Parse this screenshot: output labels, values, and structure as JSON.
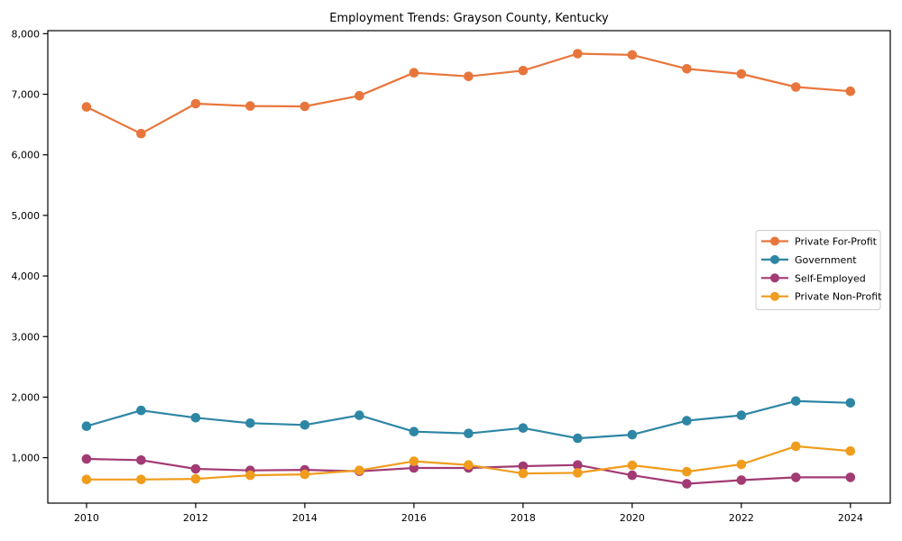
{
  "title": "Employment Trends: Grayson County, Kentucky",
  "chart_data": {
    "type": "line",
    "title": "Employment Trends: Grayson County, Kentucky",
    "xlabel": "",
    "ylabel": "",
    "x": [
      2010,
      2011,
      2012,
      2013,
      2014,
      2015,
      2016,
      2017,
      2018,
      2019,
      2020,
      2021,
      2022,
      2023,
      2024
    ],
    "x_ticks": {
      "values": [
        2010,
        2012,
        2014,
        2016,
        2018,
        2020,
        2022,
        2024
      ],
      "labels": [
        "2010",
        "2012",
        "2014",
        "2016",
        "2018",
        "2020",
        "2022",
        "2024"
      ]
    },
    "y_ticks": {
      "values": [
        1000,
        2000,
        3000,
        4000,
        5000,
        6000,
        7000,
        8000
      ],
      "labels": [
        "1,000",
        "2,000",
        "3,000",
        "4,000",
        "5,000",
        "6,000",
        "7,000",
        "8,000"
      ]
    },
    "xlim": [
      2009.29,
      2024.73
    ],
    "ylim": [
      250,
      8050
    ],
    "grid": false,
    "legend_position": "center right",
    "marker": "circle",
    "series": [
      {
        "name": "Private For-Profit",
        "color": "#e8763c",
        "values": [
          6790,
          6350,
          6845,
          6805,
          6800,
          6975,
          7355,
          7295,
          7390,
          7670,
          7650,
          7420,
          7335,
          7120,
          7050
        ]
      },
      {
        "name": "Government",
        "color": "#2e86a5",
        "values": [
          1520,
          1780,
          1660,
          1570,
          1540,
          1700,
          1430,
          1400,
          1490,
          1320,
          1380,
          1610,
          1700,
          1935,
          1905
        ]
      },
      {
        "name": "Self-Employed",
        "color": "#a23a73",
        "values": [
          980,
          960,
          815,
          790,
          800,
          775,
          830,
          830,
          860,
          880,
          710,
          570,
          630,
          675,
          675
        ]
      },
      {
        "name": "Private Non-Profit",
        "color": "#f09c1c",
        "values": [
          640,
          640,
          650,
          710,
          725,
          790,
          940,
          880,
          740,
          750,
          875,
          770,
          890,
          1190,
          1110
        ]
      }
    ]
  }
}
